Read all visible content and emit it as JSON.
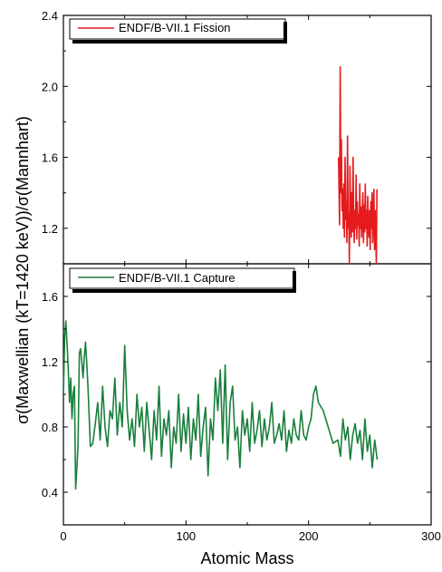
{
  "chart_data": [
    {
      "type": "line",
      "panel": "top",
      "xlabel": "Atomic Mass",
      "ylabel": "σ(Maxwellian (kT=1420 keV))/σ(Mannhart)",
      "xlim": [
        0,
        300
      ],
      "ylim": [
        1.0,
        2.4
      ],
      "yticks": [
        1.2,
        1.6,
        2.0,
        2.4
      ],
      "ytick_labels": [
        "1.2",
        "1.6",
        "2.0",
        "2.4"
      ],
      "legend_position": "top-left",
      "series": [
        {
          "name": "ENDF/B-VII.1 Fission",
          "color": "#e41a1c",
          "x": [
            224.5,
            225.3,
            225.8,
            226.3,
            226.8,
            227.3,
            227.8,
            228.3,
            228.8,
            229.3,
            229.8,
            230.3,
            230.8,
            231.3,
            231.8,
            232.3,
            232.8,
            233.3,
            233.8,
            234.3,
            234.8,
            235.3,
            235.8,
            236.3,
            236.8,
            237.3,
            237.8,
            238.3,
            238.8,
            239.3,
            239.8,
            240.3,
            240.8,
            241.3,
            241.8,
            242.3,
            242.8,
            243.3,
            243.8,
            244.3,
            244.8,
            245.3,
            245.8,
            246.3,
            246.8,
            247.3,
            247.8,
            248.3,
            248.8,
            249.3,
            249.8,
            250.3,
            250.8,
            251.3,
            251.8,
            252.3,
            252.8,
            253.3,
            253.8,
            254.3,
            254.8,
            255.3,
            255.8
          ],
          "values": [
            1.6,
            1.22,
            2.11,
            1.4,
            1.7,
            1.3,
            1.42,
            1.2,
            1.45,
            1.15,
            1.6,
            1.25,
            1.35,
            1.12,
            1.72,
            1.2,
            1.28,
            1.0,
            1.55,
            1.3,
            1.15,
            1.4,
            1.18,
            1.6,
            1.25,
            1.12,
            1.3,
            1.2,
            1.5,
            1.14,
            1.35,
            1.22,
            1.28,
            1.1,
            1.45,
            1.2,
            1.32,
            1.15,
            1.25,
            1.4,
            1.12,
            1.33,
            1.18,
            1.45,
            1.2,
            1.3,
            1.1,
            1.38,
            1.22,
            1.15,
            1.3,
            1.08,
            1.35,
            1.2,
            1.4,
            1.12,
            1.25,
            1.42,
            1.08,
            1.3,
            1.18,
            1.0,
            1.42
          ]
        }
      ]
    },
    {
      "type": "line",
      "panel": "bottom",
      "xlabel": "Atomic Mass",
      "ylabel": "σ(Maxwellian (kT=1420 keV))/σ(Mannhart)",
      "xlim": [
        0,
        300
      ],
      "ylim": [
        0.2,
        1.8
      ],
      "xticks": [
        0,
        100,
        200,
        300
      ],
      "xtick_labels": [
        "0",
        "100",
        "200",
        "300"
      ],
      "yticks": [
        0.4,
        0.8,
        1.2,
        1.6
      ],
      "ytick_labels": [
        "0.4",
        "0.8",
        "1.2",
        "1.6"
      ],
      "legend_position": "top-left",
      "series": [
        {
          "name": "ENDF/B-VII.1 Capture",
          "color": "#1a7f3c",
          "x": [
            0,
            1,
            2,
            3,
            4,
            5,
            6,
            7,
            8,
            9,
            10,
            11,
            12,
            13,
            14,
            15,
            16,
            17,
            18,
            19,
            20,
            22,
            24,
            26,
            28,
            30,
            32,
            34,
            36,
            38,
            40,
            42,
            44,
            46,
            48,
            50,
            52,
            54,
            56,
            58,
            60,
            62,
            64,
            66,
            68,
            70,
            72,
            74,
            76,
            78,
            80,
            82,
            84,
            86,
            88,
            90,
            92,
            94,
            96,
            98,
            100,
            102,
            104,
            106,
            108,
            110,
            112,
            114,
            116,
            118,
            120,
            122,
            124,
            126,
            128,
            130,
            132,
            134,
            136,
            138,
            140,
            142,
            144,
            146,
            148,
            150,
            152,
            154,
            156,
            158,
            160,
            162,
            164,
            166,
            168,
            170,
            172,
            174,
            176,
            178,
            180,
            182,
            184,
            186,
            188,
            190,
            192,
            194,
            196,
            198,
            200,
            202,
            204,
            206,
            208,
            212,
            216,
            220,
            224,
            226,
            228,
            230,
            232,
            234,
            236,
            238,
            240,
            242,
            244,
            246,
            248,
            250,
            252,
            254,
            256
          ],
          "values": [
            1.0,
            1.35,
            1.45,
            1.3,
            1.15,
            0.95,
            1.1,
            0.85,
            1.0,
            1.05,
            0.42,
            0.55,
            0.7,
            1.25,
            1.28,
            1.2,
            1.1,
            1.22,
            1.32,
            1.2,
            1.05,
            0.68,
            0.7,
            0.82,
            0.95,
            0.72,
            1.05,
            0.8,
            0.68,
            0.9,
            0.85,
            1.1,
            0.75,
            0.95,
            0.8,
            1.3,
            0.9,
            0.72,
            0.85,
            0.68,
            1.0,
            0.8,
            0.92,
            0.65,
            0.95,
            0.78,
            0.6,
            0.9,
            0.72,
            1.05,
            0.62,
            0.85,
            0.75,
            0.9,
            0.55,
            0.8,
            0.7,
            1.0,
            0.65,
            0.88,
            0.7,
            0.92,
            0.6,
            0.85,
            0.72,
            1.0,
            0.62,
            0.8,
            0.92,
            0.5,
            0.85,
            0.72,
            1.1,
            0.9,
            1.15,
            0.7,
            1.18,
            0.6,
            0.95,
            1.05,
            0.72,
            0.8,
            0.55,
            0.9,
            0.75,
            0.85,
            0.65,
            0.95,
            0.7,
            0.78,
            0.9,
            0.68,
            0.85,
            0.72,
            0.8,
            0.95,
            0.7,
            0.75,
            0.82,
            0.72,
            0.9,
            0.65,
            0.78,
            0.7,
            0.85,
            0.75,
            0.72,
            0.9,
            0.75,
            0.72,
            0.8,
            0.85,
            1.0,
            1.05,
            0.95,
            0.9,
            0.8,
            0.7,
            0.72,
            0.62,
            0.85,
            0.72,
            0.8,
            0.6,
            0.75,
            0.82,
            0.7,
            0.78,
            0.6,
            0.85,
            0.65,
            0.75,
            0.55,
            0.72,
            0.6
          ]
        }
      ]
    }
  ]
}
